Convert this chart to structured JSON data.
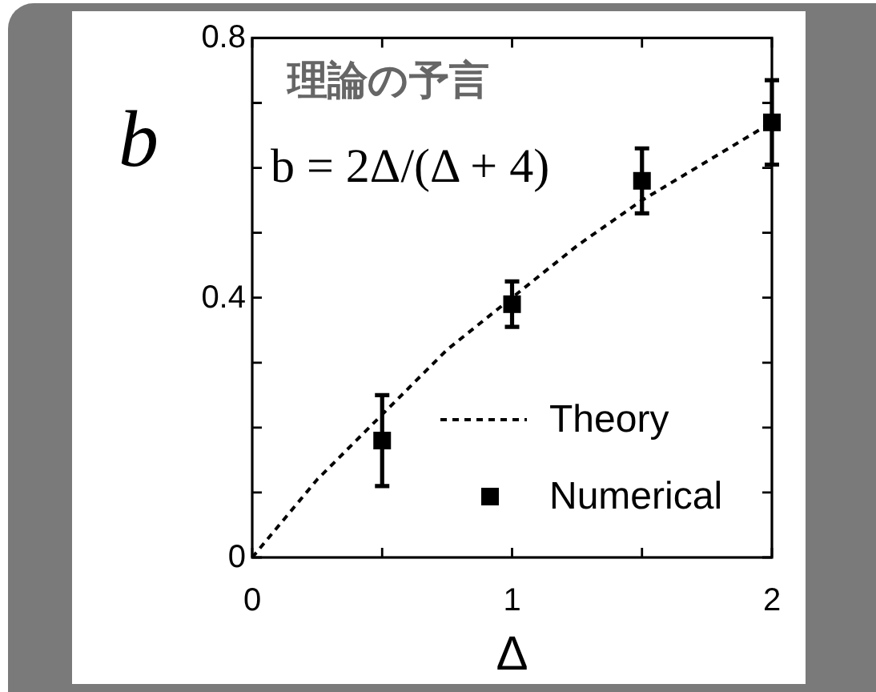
{
  "chart_data": {
    "type": "scatter",
    "annotations": [
      "理論の予言",
      "b = 2Δ/(Δ + 4)"
    ],
    "xlabel": "Δ",
    "ylabel": "b",
    "xlim": [
      0,
      2
    ],
    "ylim": [
      0,
      0.8
    ],
    "xticks": [
      0,
      {
        "value": 0.5,
        "label": null
      },
      1,
      {
        "value": 1.5,
        "label": null
      },
      2
    ],
    "yticks": [
      0,
      {
        "value": 0.1,
        "label": null
      },
      {
        "value": 0.2,
        "label": null
      },
      {
        "value": 0.3,
        "label": null
      },
      0.4,
      {
        "value": 0.5,
        "label": null
      },
      {
        "value": 0.6,
        "label": null
      },
      {
        "value": 0.7,
        "label": null
      },
      0.8
    ],
    "legend": "bottom right",
    "series": [
      {
        "name": "Theory",
        "type": "line",
        "color": "#000000",
        "line_style": "dashed",
        "marker": "none",
        "x": [
          0,
          0.25,
          0.5,
          0.75,
          1,
          1.25,
          1.5,
          1.75,
          2
        ],
        "values": [
          0,
          0.12,
          0.22,
          0.32,
          0.4,
          0.48,
          0.55,
          0.61,
          0.67
        ]
      },
      {
        "name": "Numerical",
        "color": "#000000",
        "marker": "square",
        "x": [
          0.5,
          1,
          1.5,
          2
        ],
        "values": [
          0.18,
          0.39,
          0.58,
          0.67
        ],
        "errors": [
          0.07,
          0.035,
          0.05,
          0.065
        ]
      }
    ]
  }
}
